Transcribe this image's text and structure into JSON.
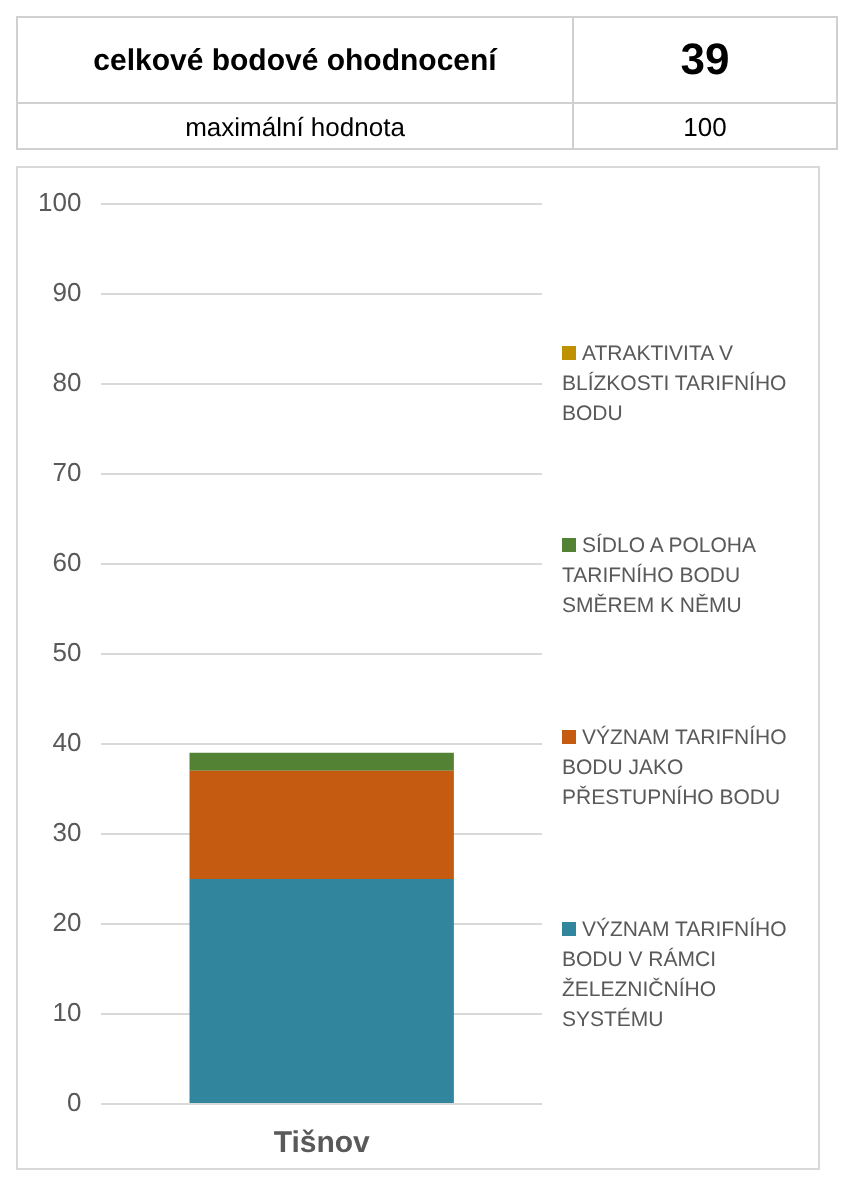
{
  "chart_data": {
    "type": "bar",
    "stacked": true,
    "categories": [
      "Tišnov"
    ],
    "series": [
      {
        "name": "VÝZNAM TARIFNÍHO BODU V RÁMCI ŽELEZNIČNÍHO SYSTÉMU",
        "color": "#31859c",
        "values": [
          25
        ]
      },
      {
        "name": "VÝZNAM TARIFNÍHO BODU JAKO PŘESTUPNÍHO BODU",
        "color": "#c55a11",
        "values": [
          12
        ]
      },
      {
        "name": "SÍDLO A POLOHA TARIFNÍHO BODU SMĚREM K NĚMU",
        "color": "#548235",
        "values": [
          2
        ]
      },
      {
        "name": "ATRAKTIVITA V BLÍZKOSTI TARIFNÍHO BODU",
        "color": "#bf9000",
        "values": [
          0
        ]
      }
    ],
    "ylim": [
      0,
      100
    ],
    "yticks": [
      0,
      10,
      20,
      30,
      40,
      50,
      60,
      70,
      80,
      90,
      100
    ],
    "grid": "y",
    "legend": "right",
    "annotations": [
      "celkové bodové ohodnocení",
      "39",
      "maximální hodnota",
      "100"
    ]
  }
}
